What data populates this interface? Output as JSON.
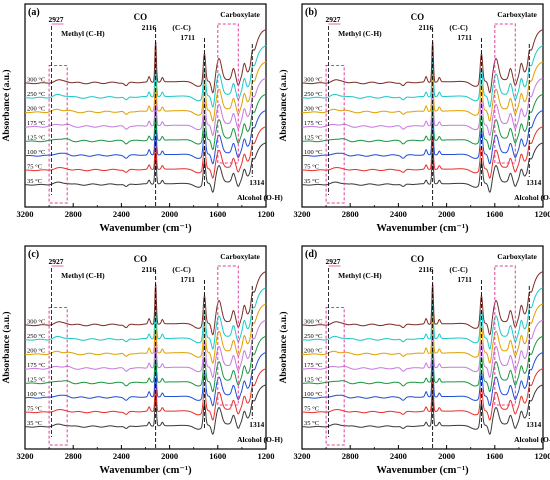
{
  "chart_data": [
    {
      "type": "line",
      "panel_label": "(a)",
      "xlabel": "Wavenumber (cm⁻¹)",
      "ylabel": "Absorbance (a.u.)",
      "xlim": [
        3200,
        1200
      ],
      "xticks": [
        3200,
        2800,
        2400,
        2000,
        1600,
        1200
      ],
      "series": [
        {
          "name": "35 °C",
          "color": "#3a3a3a"
        },
        {
          "name": "75 °C",
          "color": "#e8312b"
        },
        {
          "name": "100 °C",
          "color": "#1f4fd6"
        },
        {
          "name": "125 °C",
          "color": "#1a9641"
        },
        {
          "name": "175 °C",
          "color": "#c57be0"
        },
        {
          "name": "200 °C",
          "color": "#e1a100"
        },
        {
          "name": "250 °C",
          "color": "#1cc8c8"
        },
        {
          "name": "300 °C",
          "color": "#7b2d26"
        }
      ],
      "annotations": {
        "methyl": {
          "text": "Methyl (C-H)",
          "value": "2927"
        },
        "co": {
          "text": "CO",
          "value": "2116"
        },
        "cc": {
          "text": "(C-C)",
          "value": "1711"
        },
        "carboxylate": {
          "text": "Carboxylate"
        },
        "alcohol": {
          "text": "Alcohol (O-H)",
          "value": "1314"
        }
      }
    },
    {
      "type": "line",
      "panel_label": "(b)",
      "xlabel": "Wavenumber (cm⁻¹)",
      "ylabel": "Absorbance (a.u.)",
      "xlim": [
        3200,
        1200
      ],
      "xticks": [
        3200,
        2800,
        2400,
        2000,
        1600,
        1200
      ],
      "series": [
        {
          "name": "35 °C",
          "color": "#3a3a3a"
        },
        {
          "name": "75 °C",
          "color": "#e8312b"
        },
        {
          "name": "100 °C",
          "color": "#1f4fd6"
        },
        {
          "name": "125 °C",
          "color": "#1a9641"
        },
        {
          "name": "175 °C",
          "color": "#c57be0"
        },
        {
          "name": "200 °C",
          "color": "#e1a100"
        },
        {
          "name": "250 °C",
          "color": "#1cc8c8"
        },
        {
          "name": "300 °C",
          "color": "#7b2d26"
        }
      ],
      "annotations": {
        "methyl": {
          "text": "Methyl (C-H)",
          "value": "2927"
        },
        "co": {
          "text": "CO",
          "value": "2116"
        },
        "cc": {
          "text": "(C-C)",
          "value": "1711"
        },
        "carboxylate": {
          "text": "Carboxylate"
        },
        "alcohol": {
          "text": "Alcohol (O-H)",
          "value": "1314"
        }
      }
    },
    {
      "type": "line",
      "panel_label": "(c)",
      "xlabel": "Wavenumber (cm⁻¹)",
      "ylabel": "Absorbance (a.u.)",
      "xlim": [
        3200,
        1200
      ],
      "xticks": [
        3200,
        2800,
        2400,
        2000,
        1600,
        1200
      ],
      "series": [
        {
          "name": "35 °C",
          "color": "#3a3a3a"
        },
        {
          "name": "75 °C",
          "color": "#e8312b"
        },
        {
          "name": "100 °C",
          "color": "#1f4fd6"
        },
        {
          "name": "125 °C",
          "color": "#1a9641"
        },
        {
          "name": "175 °C",
          "color": "#c57be0"
        },
        {
          "name": "200 °C",
          "color": "#e1a100"
        },
        {
          "name": "250 °C",
          "color": "#1cc8c8"
        },
        {
          "name": "300 °C",
          "color": "#7b2d26"
        }
      ],
      "annotations": {
        "methyl": {
          "text": "Methyl (C-H)",
          "value": "2927"
        },
        "co": {
          "text": "CO",
          "value": "2116"
        },
        "cc": {
          "text": "(C-C)",
          "value": "1711"
        },
        "carboxylate": {
          "text": "Carboxylate"
        },
        "alcohol": {
          "text": "Alcohol (O-H)",
          "value": "1314"
        }
      }
    },
    {
      "type": "line",
      "panel_label": "(d)",
      "xlabel": "Wavenumber (cm⁻¹)",
      "ylabel": "Absorbance (a.u.)",
      "xlim": [
        3200,
        1200
      ],
      "xticks": [
        3200,
        2800,
        2400,
        2000,
        1600,
        1200
      ],
      "series": [
        {
          "name": "35 °C",
          "color": "#3a3a3a"
        },
        {
          "name": "75 °C",
          "color": "#e8312b"
        },
        {
          "name": "100 °C",
          "color": "#1f4fd6"
        },
        {
          "name": "125 °C",
          "color": "#1a9641"
        },
        {
          "name": "175 °C",
          "color": "#c57be0"
        },
        {
          "name": "200 °C",
          "color": "#e1a100"
        },
        {
          "name": "250 °C",
          "color": "#1cc8c8"
        },
        {
          "name": "300 °C",
          "color": "#7b2d26"
        }
      ],
      "annotations": {
        "methyl": {
          "text": "Methyl (C-H)",
          "value": "2927"
        },
        "co": {
          "text": "CO",
          "value": "2116"
        },
        "cc": {
          "text": "(C-C)",
          "value": "1711"
        },
        "carboxylate": {
          "text": "Carboxylate"
        },
        "alcohol": {
          "text": "Alcohol (O-H)",
          "value": "1314"
        }
      }
    }
  ]
}
